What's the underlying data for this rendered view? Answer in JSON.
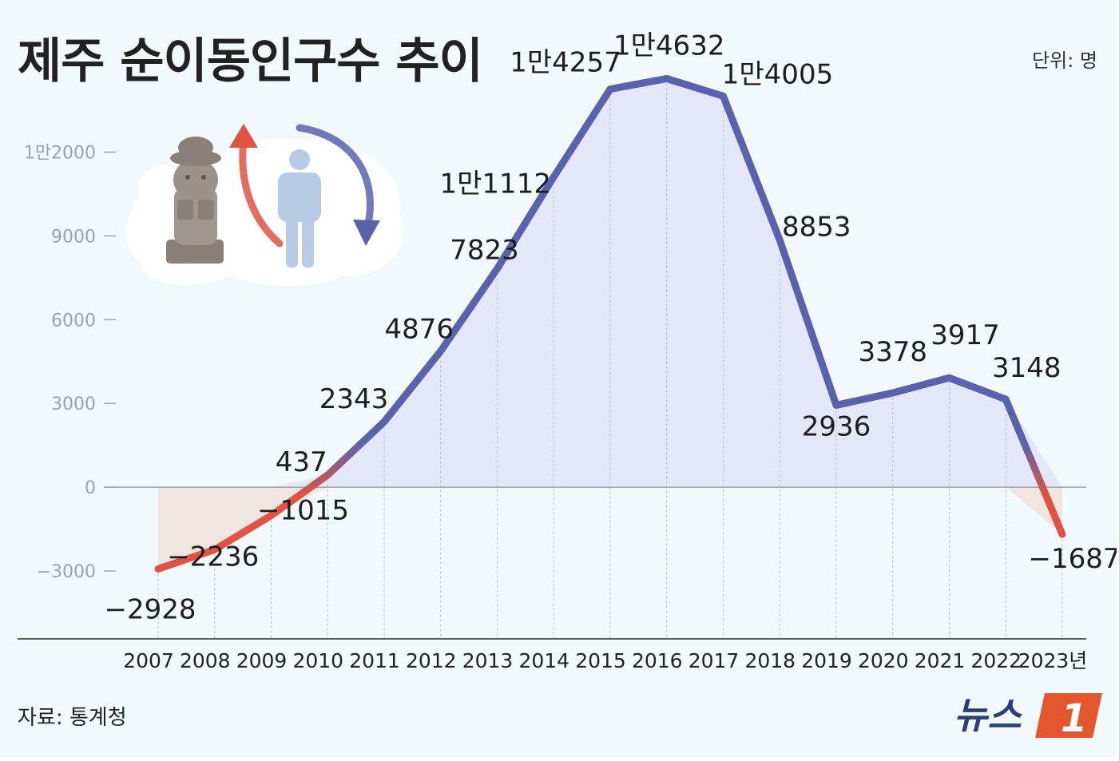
{
  "title": "제주 순이동인구수 추이",
  "unit_label": "단위: 명",
  "source_label": "자료: 통계청",
  "logo": {
    "text": "뉴스",
    "mark": "1",
    "mark_color": "#e4572e",
    "text_color": "#2a3f73"
  },
  "colors": {
    "positive_line": "#5a62ad",
    "negative_line": "#e05343",
    "positive_fill": "#e3e7f7",
    "negative_fill": "#efe6e1",
    "background": "#f1f9fc"
  },
  "chart_data": {
    "type": "area",
    "title": "제주 순이동인구수 추이",
    "ylabel": "",
    "xlabel": "",
    "unit": "명",
    "categories": [
      "2007",
      "2008",
      "2009",
      "2010",
      "2011",
      "2012",
      "2013",
      "2014",
      "2015",
      "2016",
      "2017",
      "2018",
      "2019",
      "2020",
      "2021",
      "2022",
      "2023년"
    ],
    "values": [
      -2928,
      -2236,
      -1015,
      437,
      2343,
      4876,
      7823,
      11112,
      14257,
      14632,
      14005,
      8853,
      2936,
      3378,
      3917,
      3148,
      -1687
    ],
    "data_labels": [
      "−2928",
      "−2236",
      "−1015",
      "437",
      "2343",
      "4876",
      "7823",
      "1만1112",
      "1만4257",
      "1만4632",
      "1만4005",
      "8853",
      "2936",
      "3378",
      "3917",
      "3148",
      "−1687"
    ],
    "yticks": [
      -3000,
      0,
      3000,
      6000,
      9000,
      12000
    ],
    "ytick_labels": [
      "−3000",
      "0",
      "3000",
      "6000",
      "9000",
      "1만2000"
    ],
    "ylim": [
      -5430,
      15160
    ],
    "grid": false
  }
}
